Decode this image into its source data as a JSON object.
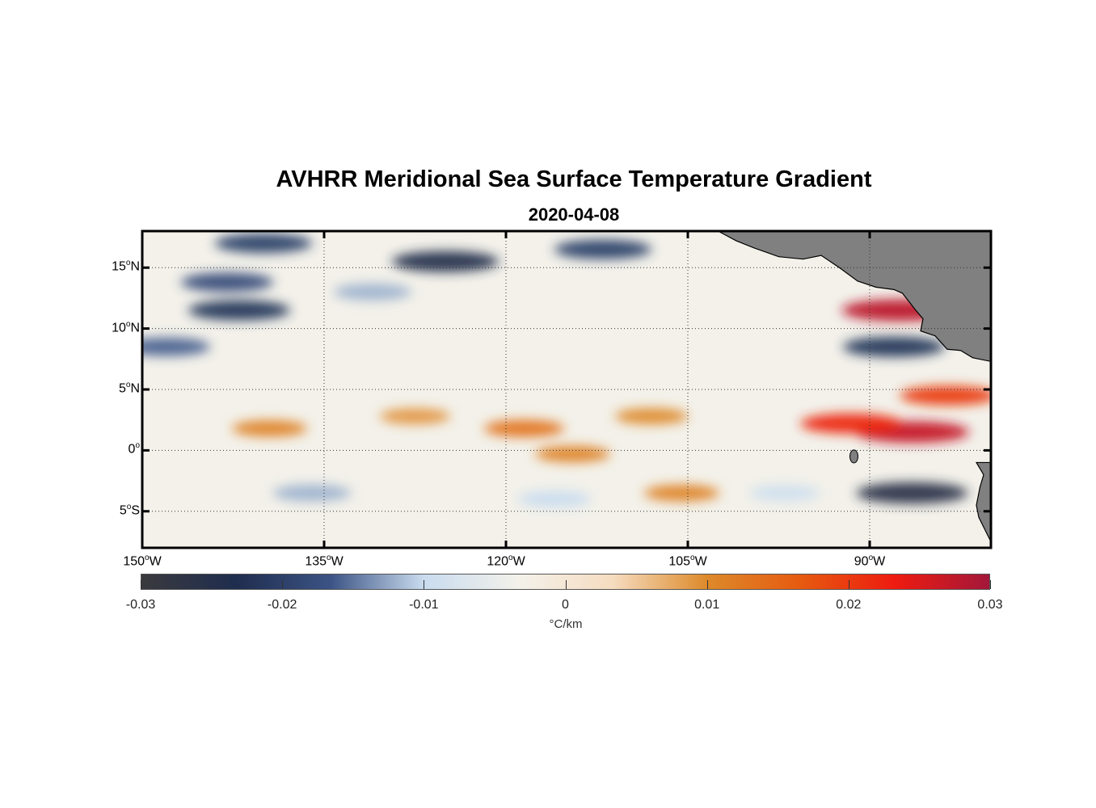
{
  "title": "AVHRR Meridional Sea Surface Temperature Gradient",
  "subtitle": "2020-04-08",
  "lat_ticks": [
    {
      "value": 15,
      "label": "15",
      "hemi": "N"
    },
    {
      "value": 10,
      "label": "10",
      "hemi": "N"
    },
    {
      "value": 5,
      "label": "5",
      "hemi": "N"
    },
    {
      "value": 0,
      "label": "0",
      "hemi": ""
    },
    {
      "value": -5,
      "label": "5",
      "hemi": "S"
    }
  ],
  "lon_ticks": [
    {
      "value": -150,
      "label": "150",
      "hemi": "W"
    },
    {
      "value": -135,
      "label": "135",
      "hemi": "W"
    },
    {
      "value": -120,
      "label": "120",
      "hemi": "W"
    },
    {
      "value": -105,
      "label": "105",
      "hemi": "W"
    },
    {
      "value": -90,
      "label": "90",
      "hemi": "W"
    }
  ],
  "degree_symbol": "o",
  "colorbar": {
    "ticks": [
      "-0.03",
      "-0.02",
      "-0.01",
      "0",
      "0.01",
      "0.02",
      "0.03"
    ],
    "range": [
      -0.03,
      0.03
    ],
    "unit": "°C/km",
    "colors": [
      "#3a3a3e",
      "#1f2d4e",
      "#3b5384",
      "#c9dcef",
      "#f3f1ea",
      "#f6dcc0",
      "#dd8a2a",
      "#e65a10",
      "#ee1b10",
      "#a3173a"
    ]
  },
  "land_color": "#808080",
  "chart_data": {
    "type": "heatmap",
    "title": "AVHRR Meridional Sea Surface Temperature Gradient",
    "subtitle": "2020-04-08",
    "variable": "meridional SST gradient",
    "unit": "°C/km",
    "lon_range": [
      -150,
      -80
    ],
    "lat_range": [
      -8,
      18
    ],
    "grid": "dotted",
    "value_range": [
      -0.03,
      0.03
    ],
    "features": [
      {
        "lon": -87.5,
        "lat": 11.5,
        "value": 0.028
      },
      {
        "lon": -86.5,
        "lat": 1.5,
        "value": 0.027
      },
      {
        "lon": -91.5,
        "lat": 2.2,
        "value": 0.022
      },
      {
        "lon": -83.5,
        "lat": 4.5,
        "value": 0.02
      },
      {
        "lon": -118.5,
        "lat": 1.8,
        "value": 0.013
      },
      {
        "lon": -139.5,
        "lat": 1.8,
        "value": 0.011
      },
      {
        "lon": -127.5,
        "lat": 2.8,
        "value": 0.009
      },
      {
        "lon": -108,
        "lat": 2.8,
        "value": 0.01
      },
      {
        "lon": -114.5,
        "lat": -0.3,
        "value": 0.011
      },
      {
        "lon": -105.5,
        "lat": -3.5,
        "value": 0.011
      },
      {
        "lon": -86.5,
        "lat": -3.5,
        "value": -0.026
      },
      {
        "lon": -88,
        "lat": 8.5,
        "value": -0.022
      },
      {
        "lon": -125,
        "lat": 15.5,
        "value": -0.024
      },
      {
        "lon": -140,
        "lat": 17.0,
        "value": -0.02
      },
      {
        "lon": -142,
        "lat": 11.5,
        "value": -0.022
      },
      {
        "lon": -143,
        "lat": 13.8,
        "value": -0.018
      },
      {
        "lon": -112,
        "lat": 16.5,
        "value": -0.02
      },
      {
        "lon": -148,
        "lat": 8.5,
        "value": -0.016
      },
      {
        "lon": -131,
        "lat": 13.0,
        "value": -0.012
      },
      {
        "lon": -136,
        "lat": -3.5,
        "value": -0.012
      },
      {
        "lon": -116,
        "lat": -4.0,
        "value": -0.01
      },
      {
        "lon": -97,
        "lat": -3.5,
        "value": -0.009
      }
    ]
  }
}
